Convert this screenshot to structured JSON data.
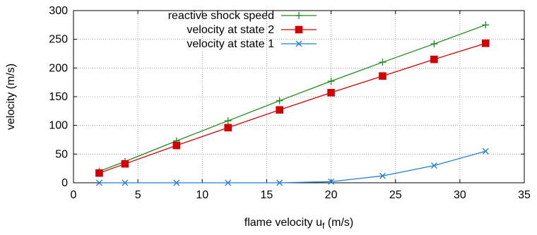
{
  "chart_data": {
    "type": "line",
    "xlabel": "flame velocity u",
    "xlabel_sub": "f",
    "xlabel_unit": " (m/s)",
    "ylabel": "velocity (m/s)",
    "xlim": [
      0,
      35
    ],
    "ylim": [
      0,
      300
    ],
    "xticks": [
      0,
      5,
      10,
      15,
      20,
      25,
      30,
      35
    ],
    "yticks": [
      0,
      50,
      100,
      150,
      200,
      250,
      300
    ],
    "grid": true,
    "legend_position": "top-left",
    "x": [
      2,
      4,
      8,
      12,
      16,
      20,
      24,
      28,
      32
    ],
    "series": [
      {
        "name": "reactive shock speed",
        "marker": "plus",
        "color": "#1a8c1a",
        "values": [
          20,
          37,
          73,
          108,
          143,
          177,
          210,
          242,
          275
        ]
      },
      {
        "name": "velocity at state 2",
        "marker": "filled-square",
        "color": "#d40000",
        "values": [
          17,
          33,
          65,
          96,
          127,
          157,
          186,
          215,
          243
        ]
      },
      {
        "name": "velocity at state 1",
        "marker": "cross",
        "color": "#1f7fd6",
        "values": [
          0,
          0,
          0,
          0,
          0,
          2,
          12,
          30,
          55
        ]
      }
    ]
  }
}
